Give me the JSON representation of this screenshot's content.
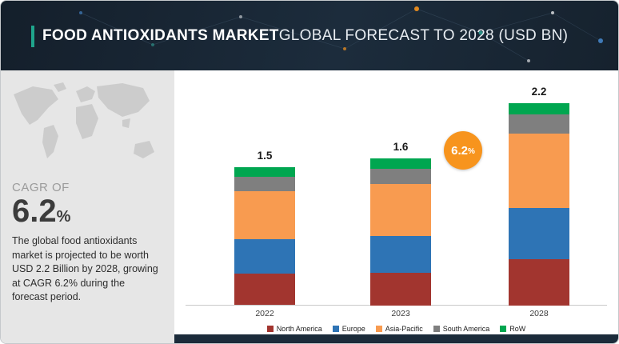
{
  "header": {
    "title_bold": "FOOD ANTIOXIDANTS MARKET",
    "title_rest": " GLOBAL FORECAST TO 2028 (USD BN)",
    "accent_color": "#1fa58c",
    "background_color": "#1c2c3c"
  },
  "sidebar": {
    "cagr_label": "CAGR OF",
    "cagr_value": "6.2",
    "cagr_unit": "%",
    "description": "The global food antioxidants market is projected to be worth USD 2.2 Billion by 2028, growing at CAGR 6.2% during the forecast period."
  },
  "badge": {
    "value": "6.2",
    "unit": "%",
    "color": "#f7941d"
  },
  "chart_data": {
    "type": "bar",
    "stacked": true,
    "title": "FOOD ANTIOXIDANTS MARKET GLOBAL FORECAST TO 2028 (USD BN)",
    "unit": "USD BN",
    "categories": [
      "2022",
      "2023",
      "2028"
    ],
    "totals": [
      1.5,
      1.6,
      2.2
    ],
    "series": [
      {
        "name": "North America",
        "color": "#a2352f",
        "values": [
          0.34,
          0.36,
          0.5
        ]
      },
      {
        "name": "Europe",
        "color": "#2e74b5",
        "values": [
          0.38,
          0.4,
          0.56
        ]
      },
      {
        "name": "Asia-Pacific",
        "color": "#f89b50",
        "values": [
          0.52,
          0.56,
          0.81
        ]
      },
      {
        "name": "South America",
        "color": "#7f7f7f",
        "values": [
          0.16,
          0.17,
          0.21
        ]
      },
      {
        "name": "RoW",
        "color": "#00a650",
        "values": [
          0.1,
          0.11,
          0.12
        ]
      }
    ],
    "ylim": [
      0,
      2.4
    ],
    "grid": false,
    "legend_position": "bottom",
    "annotation": "6.2% CAGR arrow between 2023 and 2028 bars"
  }
}
